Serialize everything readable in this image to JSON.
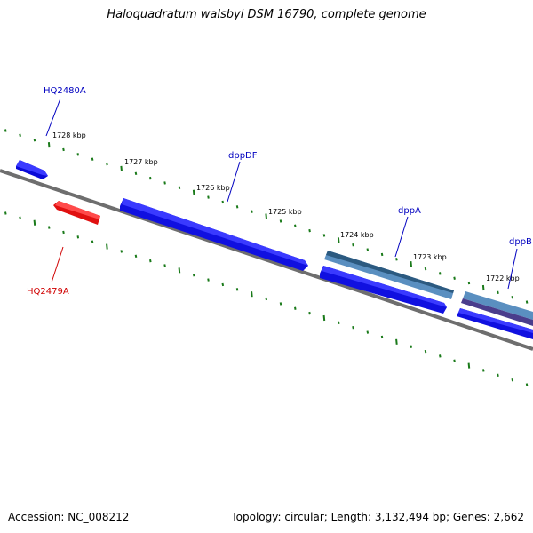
{
  "title": "Haloquadratum walsbyi DSM 16790, complete genome",
  "footer": {
    "accession": "Accession: NC_008212",
    "topology": "Topology: circular; Length: 3,132,494 bp; Genes: 2,662"
  },
  "colors": {
    "forward_gene": "#1010e8",
    "reverse_gene": "#e01010",
    "dpp_gene": "#4a7fb0",
    "dppB_gene": "#4a3d8c",
    "backbone": "#808080",
    "ticks": "#1a7a1a",
    "label_blue": "#0000c0",
    "label_red": "#d00000"
  },
  "kbp_labels": [
    "1728 kbp",
    "1727 kbp",
    "1726 kbp",
    "1725 kbp",
    "1724 kbp",
    "1723 kbp",
    "1722 kbp"
  ],
  "genes": [
    {
      "name": "HQ2480A",
      "strand": "+",
      "kind": "forward"
    },
    {
      "name": "HQ2479A",
      "strand": "-",
      "kind": "reverse"
    },
    {
      "name": "dppDF",
      "strand": "+",
      "kind": "forward"
    },
    {
      "name": "dppA",
      "strand": "+",
      "kind": "dpp"
    },
    {
      "name": "dppB",
      "strand": "+",
      "kind": "dppB"
    }
  ]
}
